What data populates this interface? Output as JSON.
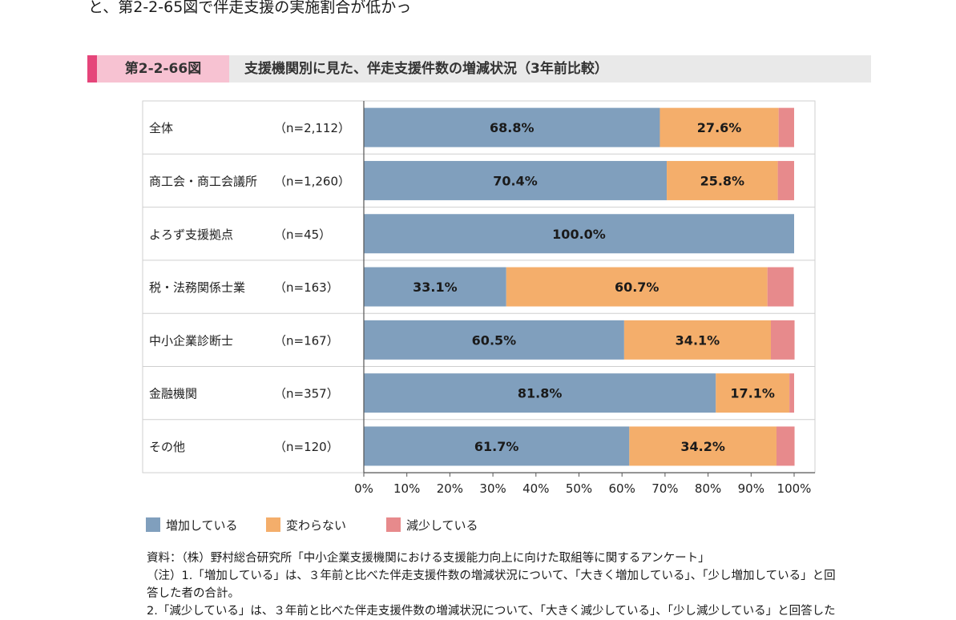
{
  "top_text": "と、第2-2-65図で伴走支援の実施割合が低かっ",
  "header": {
    "figure_number": "第2-2-66図",
    "title": "支援機関別に見た、伴走支援件数の増減状況（3年前比較）"
  },
  "chart_data": {
    "type": "bar",
    "orientation": "horizontal-stacked-100",
    "categories": [
      "全体",
      "商工会・商工会議所",
      "よろず支援拠点",
      "税・法務関係士業",
      "中小企業診断士",
      "金融機関",
      "その他"
    ],
    "sample_sizes": [
      "（n=2,112）",
      "（n=1,260）",
      "（n=45）",
      "（n=163）",
      "（n=167）",
      "（n=357）",
      "（n=120）"
    ],
    "series": [
      {
        "name": "増加している",
        "color": "#809fbd",
        "values": [
          68.8,
          70.4,
          100.0,
          33.1,
          60.5,
          81.8,
          61.7
        ]
      },
      {
        "name": "変わらない",
        "color": "#f4ae6b",
        "values": [
          27.6,
          25.8,
          0.0,
          60.7,
          34.1,
          17.1,
          34.2
        ]
      },
      {
        "name": "減少している",
        "color": "#e78a8c",
        "values": [
          3.6,
          3.8,
          0.0,
          6.1,
          5.5,
          1.1,
          4.2
        ]
      }
    ],
    "data_labels": [
      [
        "68.8%",
        "27.6%",
        ""
      ],
      [
        "70.4%",
        "25.8%",
        ""
      ],
      [
        "100.0%",
        "",
        ""
      ],
      [
        "33.1%",
        "60.7%",
        ""
      ],
      [
        "60.5%",
        "34.1%",
        ""
      ],
      [
        "81.8%",
        "17.1%",
        ""
      ],
      [
        "61.7%",
        "34.2%",
        ""
      ]
    ],
    "x_ticks": [
      "0%",
      "10%",
      "20%",
      "30%",
      "40%",
      "50%",
      "60%",
      "70%",
      "80%",
      "90%",
      "100%"
    ],
    "xlim": [
      0,
      100
    ],
    "grid": false,
    "legend_position": "bottom-left"
  },
  "legend": {
    "items": [
      "増加している",
      "変わらない",
      "減少している"
    ],
    "colors": [
      "#809fbd",
      "#f4ae6b",
      "#e78a8c"
    ]
  },
  "notes": [
    "資料：（株）野村総合研究所「中小企業支援機関における支援能力向上に向けた取組等に関するアンケート」",
    "（注）1.「増加している」は、３年前と比べた伴走支援件数の増減状況について、「大きく増加している」、「少し増加している」と回",
    "答した者の合計。",
    "2.「減少している」は、３年前と比べた伴走支援件数の増減状況について、「大きく減少している」、「少し減少している」と回答した"
  ]
}
